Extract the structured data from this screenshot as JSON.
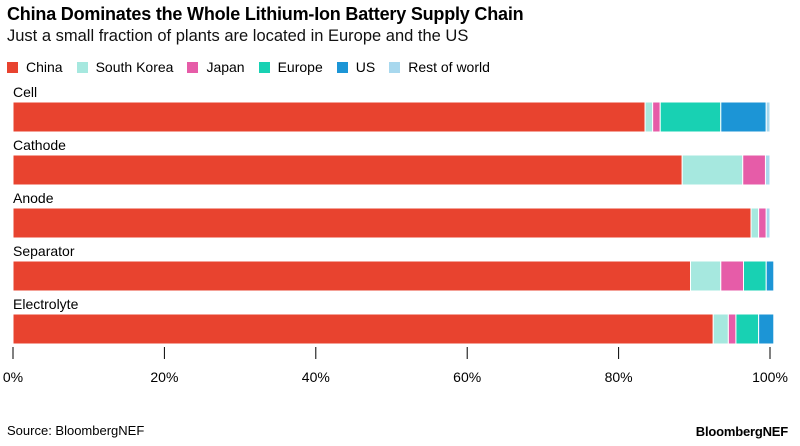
{
  "header": {
    "title": "China Dominates the Whole Lithium-Ion Battery Supply Chain",
    "subtitle": "Just a small fraction of plants are located in Europe and the US"
  },
  "footer": {
    "source": "Source: BloombergNEF",
    "brand": "BloombergNEF"
  },
  "chart_data": {
    "type": "bar",
    "orientation": "horizontal",
    "stacked": true,
    "title": "China Dominates the Whole Lithium-Ion Battery Supply Chain",
    "subtitle": "Just a small fraction of plants are located in Europe and the US",
    "legend_position": "top-left",
    "grid": false,
    "xlim": [
      0,
      100
    ],
    "x_ticks": [
      "0%",
      "20%",
      "40%",
      "60%",
      "80%",
      "100%"
    ],
    "categories": [
      "Cell",
      "Cathode",
      "Anode",
      "Separator",
      "Electrolyte"
    ],
    "series": [
      {
        "name": "China",
        "color": "#e8432f",
        "values": [
          83.5,
          88.4,
          97.5,
          89.5,
          92.5
        ]
      },
      {
        "name": "South Korea",
        "color": "#a6e8df",
        "values": [
          1.0,
          8.0,
          1.0,
          4.0,
          2.0
        ]
      },
      {
        "name": "Japan",
        "color": "#e65ca8",
        "values": [
          1.0,
          3.0,
          1.0,
          3.0,
          1.0
        ]
      },
      {
        "name": "Europe",
        "color": "#18d1b3",
        "values": [
          8.0,
          0.0,
          0.0,
          3.0,
          3.0
        ]
      },
      {
        "name": "US",
        "color": "#1c95d6",
        "values": [
          6.0,
          0.0,
          0.0,
          1.0,
          2.0
        ]
      },
      {
        "name": "Rest of world",
        "color": "#a8d8ee",
        "values": [
          0.5,
          0.6,
          0.5,
          0.0,
          0.0
        ]
      }
    ]
  }
}
